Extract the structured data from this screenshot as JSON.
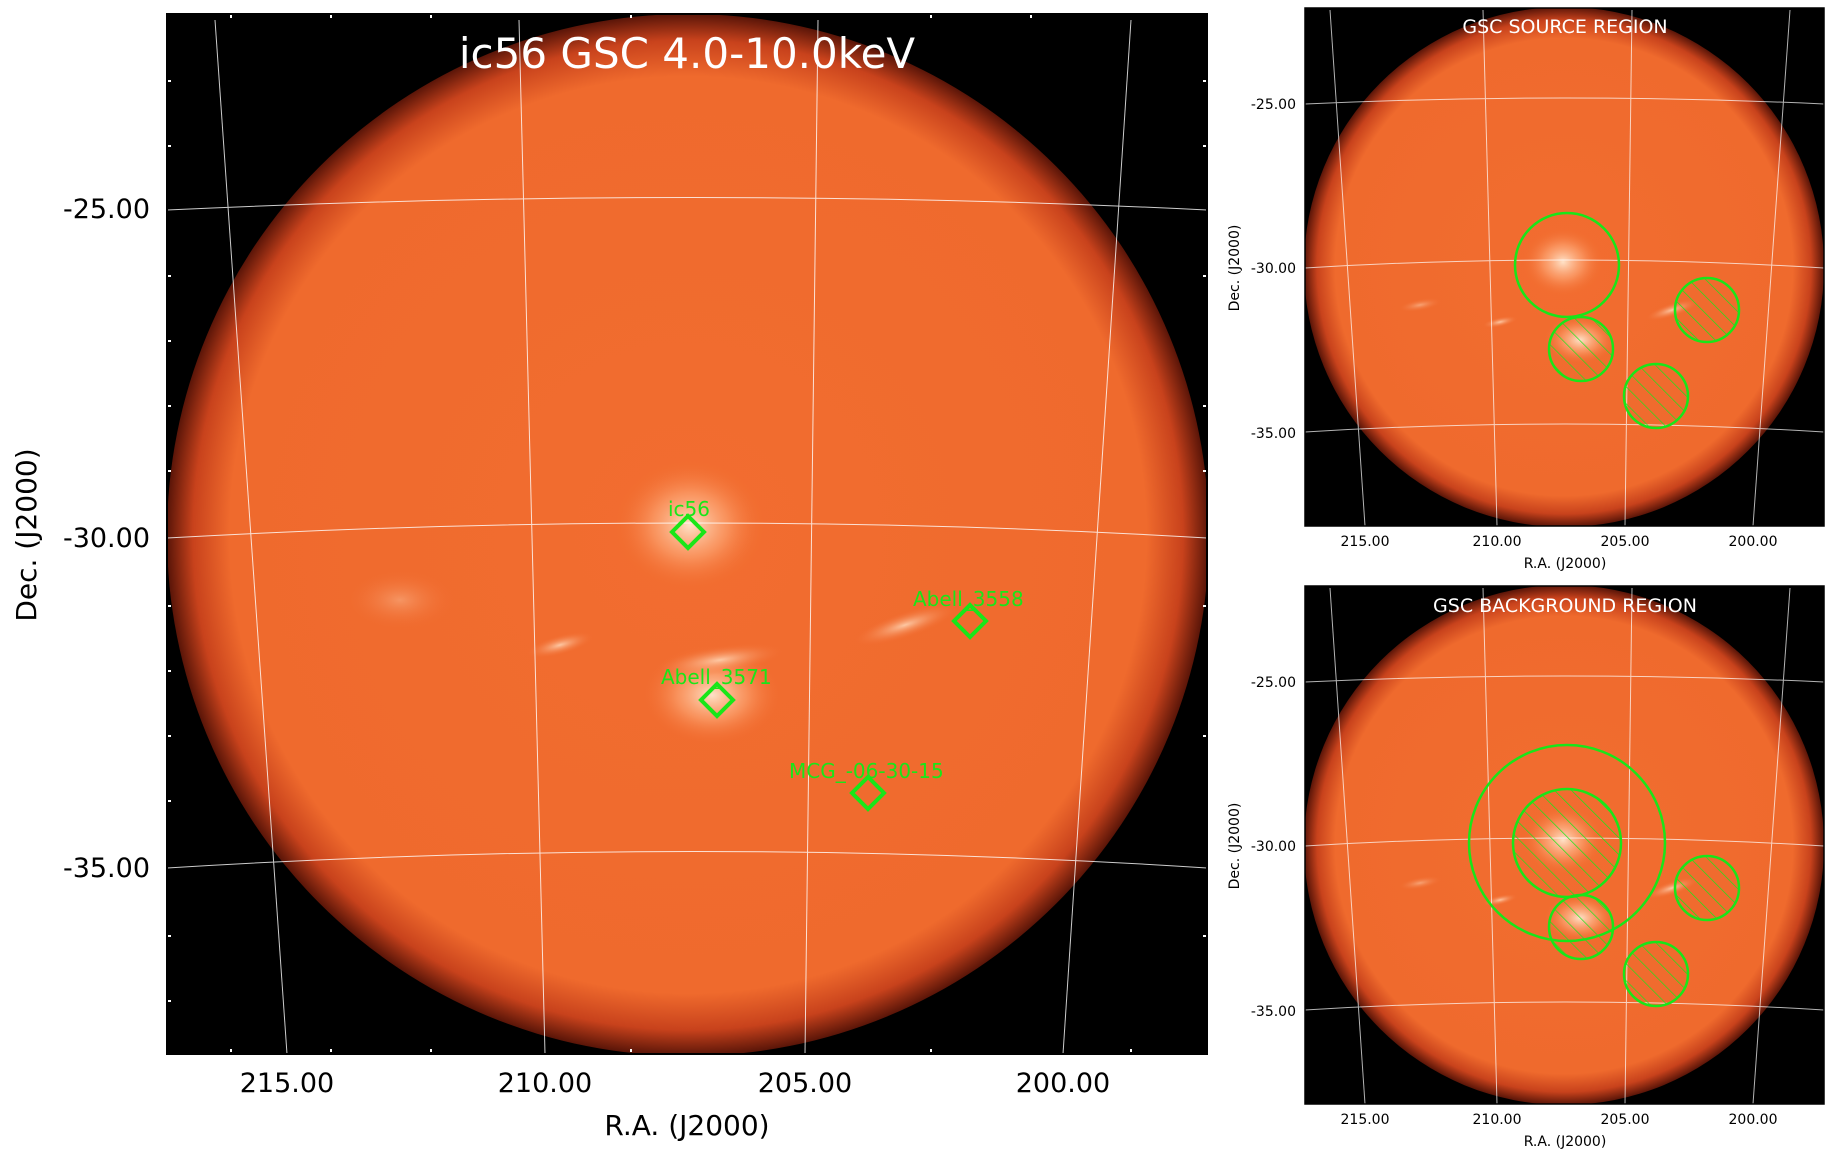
{
  "main": {
    "title": "ic56 GSC 4.0-10.0keV",
    "xlabel": "R.A. (J2000)",
    "ylabel": "Dec. (J2000)",
    "xticks": [
      "215.00",
      "210.00",
      "205.00",
      "200.00"
    ],
    "yticks": [
      "-25.00",
      "-30.00",
      "-35.00"
    ],
    "sources": [
      {
        "name": "ic56"
      },
      {
        "name": "Abell_3558"
      },
      {
        "name": "Abell_3571"
      },
      {
        "name": "MCG_-06-30-15"
      }
    ]
  },
  "source_panel": {
    "title": "GSC SOURCE REGION",
    "xlabel": "R.A. (J2000)",
    "ylabel": "Dec. (J2000)",
    "xticks": [
      "215.00",
      "210.00",
      "205.00",
      "200.00"
    ],
    "yticks": [
      "-25.00",
      "-30.00",
      "-35.00"
    ]
  },
  "background_panel": {
    "title": "GSC BACKGROUND REGION",
    "xlabel": "R.A. (J2000)",
    "ylabel": "Dec. (J2000)",
    "xticks": [
      "215.00",
      "210.00",
      "205.00",
      "200.00"
    ],
    "yticks": [
      "-25.00",
      "-30.00",
      "-35.00"
    ]
  },
  "colors": {
    "disk": "#f06a2e",
    "sky_background": "#000000",
    "region": "#19e619",
    "grid": "#ffffff"
  }
}
